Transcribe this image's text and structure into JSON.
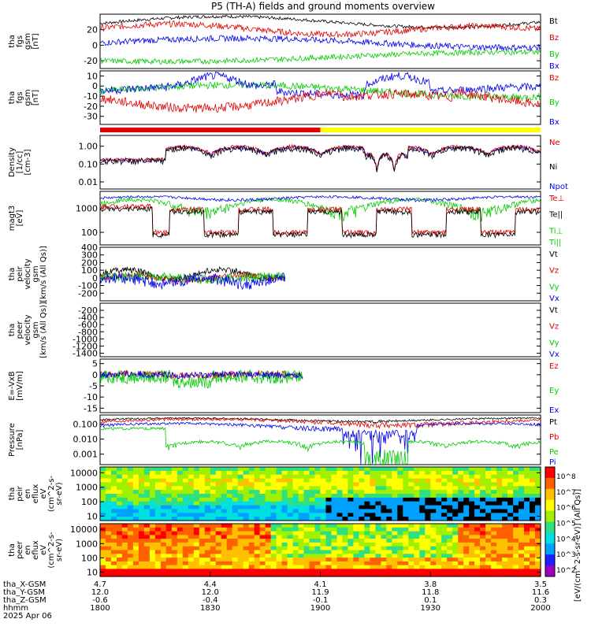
{
  "title": "P5 (TH-A) fields and ground moments overview",
  "colors": {
    "black": "#000000",
    "red": "#e00000",
    "green": "#00cc00",
    "blue": "#0000ee",
    "yellow": "#ffff00"
  },
  "status_bar": {
    "split_fraction": 0.5,
    "left_color": "#e00000",
    "right_color": "#ffff00"
  },
  "panels": [
    {
      "id": "fgs_gsm",
      "ylabel": [
        "tha",
        "fgs",
        "gsm",
        "[nT]"
      ],
      "ticks": [
        "20",
        "0",
        "-20"
      ],
      "tick_values": [
        20,
        0,
        -20
      ],
      "ylim": [
        -30,
        40
      ],
      "legend": [
        {
          "text": "Bt",
          "color": "#000000"
        },
        {
          "text": "Bz",
          "color": "#e00000"
        },
        {
          "text": "By",
          "color": "#00cc00"
        },
        {
          "text": "Bx",
          "color": "#0000ee"
        }
      ]
    },
    {
      "id": "fgs_dsl",
      "ylabel": [
        "tha",
        "fgs",
        "gsm",
        "[nT]"
      ],
      "ticks": [
        "10",
        "0",
        "-10",
        "-20",
        "-30"
      ],
      "tick_values": [
        10,
        0,
        -10,
        -20,
        -30
      ],
      "ylim": [
        -38,
        15
      ],
      "legend": [
        {
          "text": "Bz",
          "color": "#e00000"
        },
        {
          "text": "By",
          "color": "#00cc00"
        },
        {
          "text": "Bx",
          "color": "#0000ee"
        }
      ]
    },
    {
      "id": "density",
      "ylabel": [
        "Density",
        "[1/cc]",
        "[cm-3]"
      ],
      "ticks": [
        "1.00",
        "0.10",
        "0.01"
      ],
      "tick_values": [
        1,
        0.1,
        0.01
      ],
      "ylim": [
        0.004,
        4
      ],
      "log": true,
      "legend": [
        {
          "text": "Ne",
          "color": "#e00000"
        },
        {
          "text": "Ni",
          "color": "#000000"
        },
        {
          "text": "Npot",
          "color": "#0000ee"
        }
      ]
    },
    {
      "id": "temp",
      "ylabel": [
        "magt3",
        "[eV]"
      ],
      "ticks": [
        "1000",
        "100"
      ],
      "tick_values": [
        1000,
        100
      ],
      "ylim": [
        30,
        5000
      ],
      "log": true,
      "legend": [
        {
          "text": "Te⊥",
          "color": "#e00000"
        },
        {
          "text": "Te||",
          "color": "#000000"
        },
        {
          "text": "Ti⊥",
          "color": "#00cc00"
        },
        {
          "text": "Ti||",
          "color": "#00cc00"
        }
      ]
    },
    {
      "id": "peir_vel",
      "ylabel": [
        "tha",
        "peir",
        "velocity",
        "gsm",
        "[km/s (All Qs)]"
      ],
      "ticks": [
        "400",
        "300",
        "200",
        "100",
        "0",
        "-100",
        "-200"
      ],
      "tick_values": [
        400,
        300,
        200,
        100,
        0,
        -100,
        -200
      ],
      "ylim": [
        -300,
        400
      ],
      "legend": [
        {
          "text": "Vt",
          "color": "#000000"
        },
        {
          "text": "Vz",
          "color": "#e00000"
        },
        {
          "text": "Vy",
          "color": "#00cc00"
        },
        {
          "text": "Vx",
          "color": "#0000ee"
        }
      ]
    },
    {
      "id": "peer_vel",
      "ylabel": [
        "tha",
        "peer",
        "velocity",
        "gsm",
        "[km/s (All Qs)]"
      ],
      "ticks": [
        "-200",
        "-400",
        "-600",
        "-800",
        "-1000",
        "-1200",
        "-1400"
      ],
      "tick_values": [
        -200,
        -400,
        -600,
        -800,
        -1000,
        -1200,
        -1400
      ],
      "ylim": [
        -1500,
        0
      ],
      "legend": [
        {
          "text": "Vt",
          "color": "#000000"
        },
        {
          "text": "Vz",
          "color": "#e00000"
        },
        {
          "text": "Vy",
          "color": "#00cc00"
        },
        {
          "text": "Vx",
          "color": "#0000ee"
        }
      ]
    },
    {
      "id": "efield",
      "ylabel": [
        "E=-VxB",
        "[mV/m]"
      ],
      "ticks": [
        "5",
        "0",
        "-5",
        "-10",
        "-15"
      ],
      "tick_values": [
        5,
        0,
        -5,
        -10,
        -15
      ],
      "ylim": [
        -17,
        7
      ],
      "legend": [
        {
          "text": "Ez",
          "color": "#e00000"
        },
        {
          "text": "Ey",
          "color": "#00cc00"
        },
        {
          "text": "Ex",
          "color": "#0000ee"
        }
      ]
    },
    {
      "id": "pressure",
      "ylabel": [
        "Pressure",
        "[nPa]"
      ],
      "ticks": [
        "0.100",
        "0.010",
        "0.001"
      ],
      "tick_values": [
        0.1,
        0.01,
        0.001
      ],
      "ylim": [
        0.0002,
        0.4
      ],
      "log": true,
      "legend": [
        {
          "text": "Pt",
          "color": "#000000"
        },
        {
          "text": "Pb",
          "color": "#e00000"
        },
        {
          "text": "Pe",
          "color": "#00cc00"
        },
        {
          "text": "Pi",
          "color": "#0000ee"
        }
      ]
    },
    {
      "id": "peir_spec",
      "ylabel": [
        "tha",
        "peir",
        "en",
        "eflux",
        "eV",
        "(cm^2-s-",
        "sr-eV)"
      ],
      "ticks": [
        "10000",
        "1000",
        "100",
        "10"
      ],
      "tick_values": [
        10000,
        1000,
        100,
        10
      ],
      "ylim": [
        5,
        25000
      ],
      "log": true,
      "spectrogram": true
    },
    {
      "id": "peer_spec",
      "ylabel": [
        "tha",
        "peer",
        "en",
        "eflux",
        "eV",
        "(cm^2-s-",
        "sr-eV)"
      ],
      "ticks": [
        "10000",
        "1000",
        "100",
        "10"
      ],
      "tick_values": [
        10000,
        1000,
        100,
        10
      ],
      "ylim": [
        5,
        25000
      ],
      "log": true,
      "spectrogram": true
    }
  ],
  "colorbar": {
    "label": "[eV/(cm^2-s-sr-eV)] (All Qs)]",
    "ticks": [
      "10^8",
      "10^7",
      "10^6",
      "10^5",
      "10^4",
      "10^3",
      "10^2"
    ]
  },
  "xaxis": {
    "rows": [
      {
        "label": "tha_X-GSM",
        "values": [
          "4.7",
          "4.4",
          "4.1",
          "3.8",
          "3.5"
        ]
      },
      {
        "label": "tha_Y-GSM",
        "values": [
          "12.0",
          "12.0",
          "11.9",
          "11.8",
          "11.6"
        ]
      },
      {
        "label": "tha_Z-GSM",
        "values": [
          "-0.6",
          "-0.4",
          "-0.1",
          "0.1",
          "0.3"
        ]
      },
      {
        "label": "hhmm",
        "values": [
          "1800",
          "1830",
          "1900",
          "1930",
          "2000"
        ]
      }
    ],
    "date": "2025 Apr 06"
  },
  "chart_data": {
    "type": "line",
    "title": "P5 (TH-A) fields and ground moments overview",
    "x_time_hhmm": [
      "1800",
      "1830",
      "1900",
      "1930",
      "2000"
    ],
    "series": [
      {
        "name": "Bt",
        "panel": "fgs_gsm",
        "approx_values": [
          28,
          30,
          32,
          34,
          36,
          34,
          32,
          30
        ]
      },
      {
        "name": "Bz",
        "panel": "fgs_gsm",
        "approx_values": [
          25,
          22,
          20,
          18,
          30,
          18,
          22,
          20
        ]
      },
      {
        "name": "By",
        "panel": "fgs_gsm",
        "approx_values": [
          -10,
          -12,
          -15,
          -20,
          -18,
          -20,
          -22,
          -18
        ]
      },
      {
        "name": "Bx",
        "panel": "fgs_gsm",
        "approx_values": [
          0,
          5,
          8,
          5,
          10,
          2,
          5,
          0
        ]
      }
    ]
  }
}
